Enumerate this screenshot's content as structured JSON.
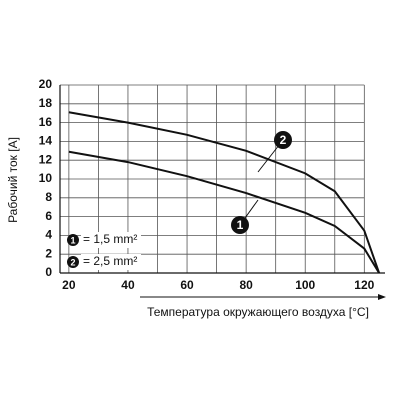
{
  "chart_data": {
    "type": "line",
    "x_label": "Температура окружающего воздуха [°C]",
    "y_label": "Рабочий ток [A]",
    "x": [
      20,
      40,
      60,
      80,
      100,
      110,
      120,
      125
    ],
    "series": [
      {
        "name": "1",
        "label": "= 1,5 mm²",
        "color": "#111111",
        "values": [
          12.9,
          11.8,
          10.3,
          8.5,
          6.4,
          5.0,
          2.6,
          0
        ]
      },
      {
        "name": "2",
        "label": "= 2,5 mm²",
        "color": "#111111",
        "values": [
          17.1,
          16.0,
          14.7,
          13.0,
          10.6,
          8.7,
          4.5,
          0
        ]
      }
    ],
    "xlim": [
      17,
      127
    ],
    "ylim": [
      0,
      20
    ],
    "xticks": [
      20,
      40,
      60,
      80,
      100,
      120
    ],
    "xgrid": [
      20,
      30,
      40,
      50,
      60,
      70,
      80,
      90,
      100,
      110,
      120
    ],
    "yticks": [
      0,
      2,
      4,
      6,
      8,
      10,
      12,
      14,
      16,
      18,
      20
    ],
    "grid": true
  }
}
